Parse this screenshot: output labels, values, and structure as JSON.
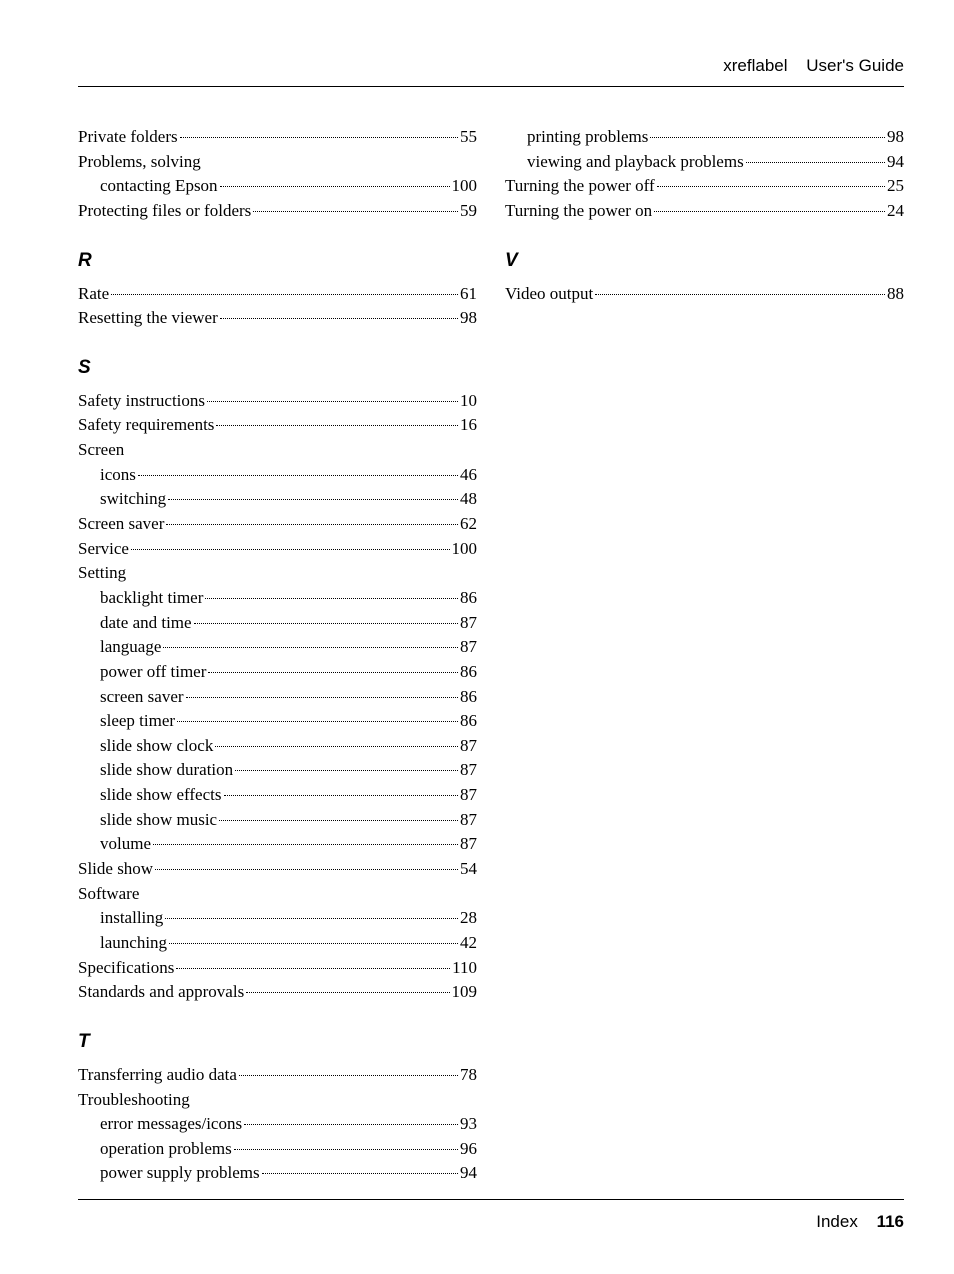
{
  "header": {
    "label": "xreflabel",
    "guide": "User's Guide"
  },
  "footer": {
    "section": "Index",
    "page": "116"
  },
  "left": [
    {
      "type": "entry",
      "text": "Private folders",
      "page": "55"
    },
    {
      "type": "entry",
      "text": "Problems, solving",
      "nopage": true
    },
    {
      "type": "entry",
      "text": "contacting Epson",
      "page": "100",
      "sub": true
    },
    {
      "type": "entry",
      "text": "Protecting files or folders",
      "page": "59"
    },
    {
      "type": "heading",
      "text": "R"
    },
    {
      "type": "entry",
      "text": "Rate",
      "page": "61"
    },
    {
      "type": "entry",
      "text": "Resetting the viewer",
      "page": "98"
    },
    {
      "type": "heading",
      "text": "S"
    },
    {
      "type": "entry",
      "text": "Safety instructions",
      "page": "10"
    },
    {
      "type": "entry",
      "text": "Safety requirements",
      "page": "16"
    },
    {
      "type": "entry",
      "text": "Screen",
      "nopage": true
    },
    {
      "type": "entry",
      "text": "icons",
      "page": "46",
      "sub": true
    },
    {
      "type": "entry",
      "text": "switching",
      "page": "48",
      "sub": true
    },
    {
      "type": "entry",
      "text": "Screen saver",
      "page": "62"
    },
    {
      "type": "entry",
      "text": "Service",
      "page": "100"
    },
    {
      "type": "entry",
      "text": "Setting",
      "nopage": true
    },
    {
      "type": "entry",
      "text": "backlight timer",
      "page": "86",
      "sub": true
    },
    {
      "type": "entry",
      "text": "date and time",
      "page": "87",
      "sub": true
    },
    {
      "type": "entry",
      "text": "language",
      "page": "87",
      "sub": true
    },
    {
      "type": "entry",
      "text": "power off timer",
      "page": "86",
      "sub": true
    },
    {
      "type": "entry",
      "text": "screen saver",
      "page": "86",
      "sub": true
    },
    {
      "type": "entry",
      "text": "sleep timer",
      "page": "86",
      "sub": true
    },
    {
      "type": "entry",
      "text": "slide show clock",
      "page": "87",
      "sub": true
    },
    {
      "type": "entry",
      "text": "slide show duration",
      "page": "87",
      "sub": true
    },
    {
      "type": "entry",
      "text": "slide show effects",
      "page": "87",
      "sub": true
    },
    {
      "type": "entry",
      "text": "slide show music",
      "page": "87",
      "sub": true
    },
    {
      "type": "entry",
      "text": "volume",
      "page": "87",
      "sub": true
    },
    {
      "type": "entry",
      "text": "Slide show",
      "page": "54"
    },
    {
      "type": "entry",
      "text": "Software",
      "nopage": true
    },
    {
      "type": "entry",
      "text": "installing",
      "page": "28",
      "sub": true
    },
    {
      "type": "entry",
      "text": "launching",
      "page": "42",
      "sub": true
    },
    {
      "type": "entry",
      "text": "Specifications",
      "page": "110"
    },
    {
      "type": "entry",
      "text": "Standards and approvals",
      "page": "109"
    },
    {
      "type": "heading",
      "text": "T"
    },
    {
      "type": "entry",
      "text": "Transferring audio data",
      "page": "78"
    },
    {
      "type": "entry",
      "text": "Troubleshooting",
      "nopage": true
    },
    {
      "type": "entry",
      "text": "error messages/icons",
      "page": "93",
      "sub": true
    },
    {
      "type": "entry",
      "text": "operation problems",
      "page": "96",
      "sub": true
    },
    {
      "type": "entry",
      "text": "power supply problems",
      "page": "94",
      "sub": true
    }
  ],
  "right": [
    {
      "type": "entry",
      "text": "printing problems",
      "page": "98",
      "sub": true
    },
    {
      "type": "entry",
      "text": "viewing and playback problems",
      "page": "94",
      "sub": true
    },
    {
      "type": "entry",
      "text": "Turning the power off",
      "page": "25"
    },
    {
      "type": "entry",
      "text": "Turning the power on",
      "page": "24"
    },
    {
      "type": "heading",
      "text": "V"
    },
    {
      "type": "entry",
      "text": "Video output",
      "page": "88"
    }
  ]
}
